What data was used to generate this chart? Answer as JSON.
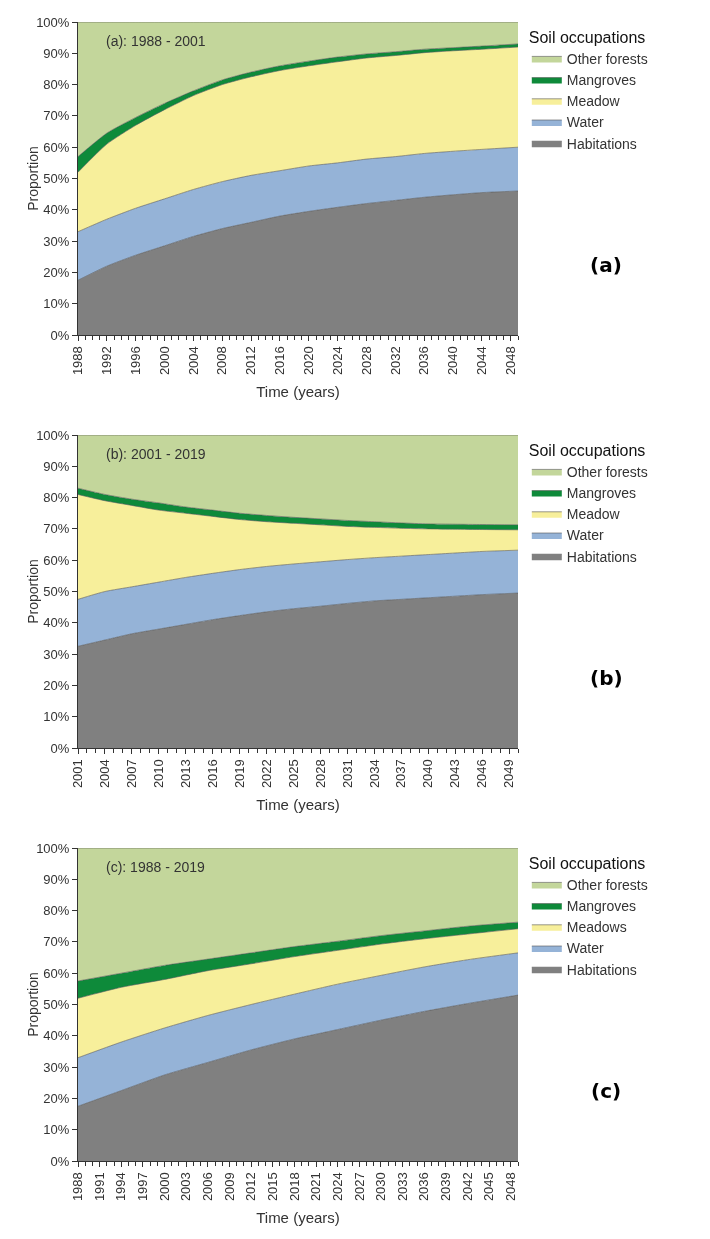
{
  "chart_data": [
    {
      "type": "area",
      "stacked": true,
      "xlabel": "Time (years)",
      "ylabel": "Proportion",
      "legend_title": "Soil occupations",
      "legend": "right",
      "marker": "none",
      "annotations": [
        "(a): 1988 - 2001",
        "(a)"
      ],
      "x": [
        1988,
        1992,
        1996,
        2000,
        2004,
        2008,
        2012,
        2016,
        2020,
        2024,
        2028,
        2032,
        2036,
        2040,
        2044,
        2049
      ],
      "xlim": [
        1988,
        2049
      ],
      "xticks": [
        1988,
        1992,
        1996,
        2000,
        2004,
        2008,
        2012,
        2016,
        2020,
        2024,
        2028,
        2032,
        2036,
        2040,
        2044,
        2048
      ],
      "ylim": [
        0,
        100
      ],
      "yticks": [
        {
          "value": 0,
          "label": "0%"
        },
        {
          "value": 10,
          "label": "10%"
        },
        {
          "value": 20,
          "label": "20%"
        },
        {
          "value": 30,
          "label": "30%"
        },
        {
          "value": 40,
          "label": "40%"
        },
        {
          "value": 50,
          "label": "50%"
        },
        {
          "value": 60,
          "label": "60%"
        },
        {
          "value": 70,
          "label": "70%"
        },
        {
          "value": 80,
          "label": "80%"
        },
        {
          "value": 90,
          "label": "90%"
        },
        {
          "value": 100,
          "label": "100%"
        }
      ],
      "series": [
        {
          "name": "Habitations",
          "color": "#808080",
          "values": [
            17.5,
            22,
            25.5,
            28.5,
            31.5,
            34,
            36,
            38,
            39.5,
            40.8,
            42,
            43,
            44,
            44.8,
            45.5,
            46
          ]
        },
        {
          "name": "Water",
          "color": "#95b3d7",
          "values": [
            15.5,
            15,
            15,
            15,
            15,
            15,
            15,
            14.5,
            14.5,
            14.2,
            14.2,
            14,
            14,
            13.9,
            13.8,
            14
          ]
        },
        {
          "name": "Meadow",
          "color": "#f7ef9b",
          "values": [
            19,
            24,
            26.5,
            28.5,
            30,
            31,
            31.5,
            32,
            32,
            32.3,
            32.3,
            32.3,
            32.2,
            32.1,
            32,
            32
          ]
        },
        {
          "name": "Mangroves",
          "color": "#0e8a3a",
          "values": [
            5,
            3.5,
            2.5,
            2,
            1.5,
            1.5,
            1.5,
            1.5,
            1.5,
            1.5,
            1.3,
            1.2,
            1.1,
            1,
            1,
            1
          ]
        },
        {
          "name": "Other forests",
          "color": "#c3d69b",
          "values": [
            43,
            35.5,
            30.5,
            26,
            22,
            18.5,
            16,
            14,
            12.5,
            11.2,
            10.2,
            9.5,
            8.7,
            8.2,
            7.7,
            7
          ]
        }
      ]
    },
    {
      "type": "area",
      "stacked": true,
      "xlabel": "Time (years)",
      "ylabel": "Proportion",
      "legend_title": "Soil occupations",
      "legend": "right",
      "marker": "none",
      "annotations": [
        "(b): 2001 - 2019",
        "(b)"
      ],
      "x": [
        2001,
        2004,
        2007,
        2010,
        2013,
        2016,
        2019,
        2022,
        2025,
        2028,
        2031,
        2034,
        2037,
        2040,
        2043,
        2046,
        2050
      ],
      "xlim": [
        2001,
        2050
      ],
      "xticks": [
        2001,
        2004,
        2007,
        2010,
        2013,
        2016,
        2019,
        2022,
        2025,
        2028,
        2031,
        2034,
        2037,
        2040,
        2043,
        2046,
        2049
      ],
      "ylim": [
        0,
        100
      ],
      "yticks": [
        {
          "value": 0,
          "label": "0%"
        },
        {
          "value": 10,
          "label": "10%"
        },
        {
          "value": 20,
          "label": "20%"
        },
        {
          "value": 30,
          "label": "30%"
        },
        {
          "value": 40,
          "label": "40%"
        },
        {
          "value": 50,
          "label": "50%"
        },
        {
          "value": 60,
          "label": "60%"
        },
        {
          "value": 70,
          "label": "70%"
        },
        {
          "value": 80,
          "label": "80%"
        },
        {
          "value": 90,
          "label": "90%"
        },
        {
          "value": 100,
          "label": "100%"
        }
      ],
      "series": [
        {
          "name": "Habitations",
          "color": "#808080",
          "values": [
            32.5,
            34.5,
            36.5,
            38,
            39.5,
            41,
            42.3,
            43.5,
            44.5,
            45.3,
            46.2,
            47,
            47.5,
            48,
            48.5,
            49,
            49.5
          ]
        },
        {
          "name": "Water",
          "color": "#95b3d7",
          "values": [
            15,
            15.5,
            15,
            15,
            15,
            14.8,
            14.7,
            14.5,
            14.3,
            14.2,
            14,
            13.8,
            13.8,
            13.8,
            13.8,
            13.8,
            13.7
          ]
        },
        {
          "name": "Meadow",
          "color": "#f7ef9b",
          "values": [
            33.5,
            29,
            26,
            23,
            20.5,
            18.2,
            16,
            14.3,
            13,
            11.8,
            10.6,
            9.7,
            8.9,
            8.2,
            7.6,
            7,
            6.5
          ]
        },
        {
          "name": "Mangroves",
          "color": "#0e8a3a",
          "values": [
            2,
            2,
            2,
            2.3,
            2,
            2,
            2,
            2,
            1.9,
            1.9,
            1.9,
            1.8,
            1.7,
            1.6,
            1.6,
            1.6,
            1.6
          ]
        },
        {
          "name": "Other forests",
          "color": "#c3d69b",
          "values": [
            17,
            19,
            20.5,
            21.7,
            23,
            24,
            25,
            25.7,
            26.3,
            26.8,
            27.3,
            27.7,
            28.1,
            28.4,
            28.5,
            28.6,
            28.7
          ]
        }
      ]
    },
    {
      "type": "area",
      "stacked": true,
      "xlabel": "Time (years)",
      "ylabel": "Proportion",
      "legend_title": "Soil occupations",
      "legend": "right",
      "marker": "none",
      "annotations": [
        "(c): 1988 - 2019",
        "(c)"
      ],
      "x": [
        1988,
        1994,
        2000,
        2006,
        2012,
        2018,
        2024,
        2030,
        2036,
        2042,
        2049
      ],
      "xlim": [
        1988,
        2049
      ],
      "xticks": [
        1988,
        1991,
        1994,
        1997,
        2000,
        2003,
        2006,
        2009,
        2012,
        2015,
        2018,
        2021,
        2024,
        2027,
        2030,
        2033,
        2036,
        2039,
        2042,
        2045,
        2048
      ],
      "ylim": [
        0,
        100
      ],
      "yticks": [
        {
          "value": 0,
          "label": "0%"
        },
        {
          "value": 10,
          "label": "10%"
        },
        {
          "value": 20,
          "label": "20%"
        },
        {
          "value": 30,
          "label": "30%"
        },
        {
          "value": 40,
          "label": "40%"
        },
        {
          "value": 50,
          "label": "50%"
        },
        {
          "value": 60,
          "label": "60%"
        },
        {
          "value": 70,
          "label": "70%"
        },
        {
          "value": 80,
          "label": "80%"
        },
        {
          "value": 90,
          "label": "90%"
        },
        {
          "value": 100,
          "label": "100%"
        }
      ],
      "series": [
        {
          "name": "Habitations",
          "color": "#808080",
          "values": [
            17.5,
            22.5,
            27.5,
            31.5,
            35.5,
            39,
            42,
            45,
            47.8,
            50.3,
            53
          ]
        },
        {
          "name": "Water",
          "color": "#95b3d7",
          "values": [
            15.5,
            15.5,
            15,
            15,
            14.5,
            14.3,
            14.5,
            14.3,
            14.2,
            14,
            13.5
          ]
        },
        {
          "name": "Meadows",
          "color": "#f7ef9b",
          "values": [
            19,
            17.5,
            15.5,
            14.3,
            13,
            12,
            10.8,
            10,
            9,
            8.2,
            7.7
          ]
        },
        {
          "name": "Mangroves",
          "color": "#0e8a3a",
          "values": [
            5.5,
            4.5,
            4.5,
            3.7,
            3.5,
            3.2,
            2.9,
            2.7,
            2.5,
            2.5,
            2.1
          ]
        },
        {
          "name": "Other forests",
          "color": "#c3d69b",
          "values": [
            42.5,
            40,
            37.5,
            35.5,
            33.5,
            31.5,
            29.8,
            28,
            26.5,
            25,
            23.7
          ]
        }
      ]
    }
  ]
}
